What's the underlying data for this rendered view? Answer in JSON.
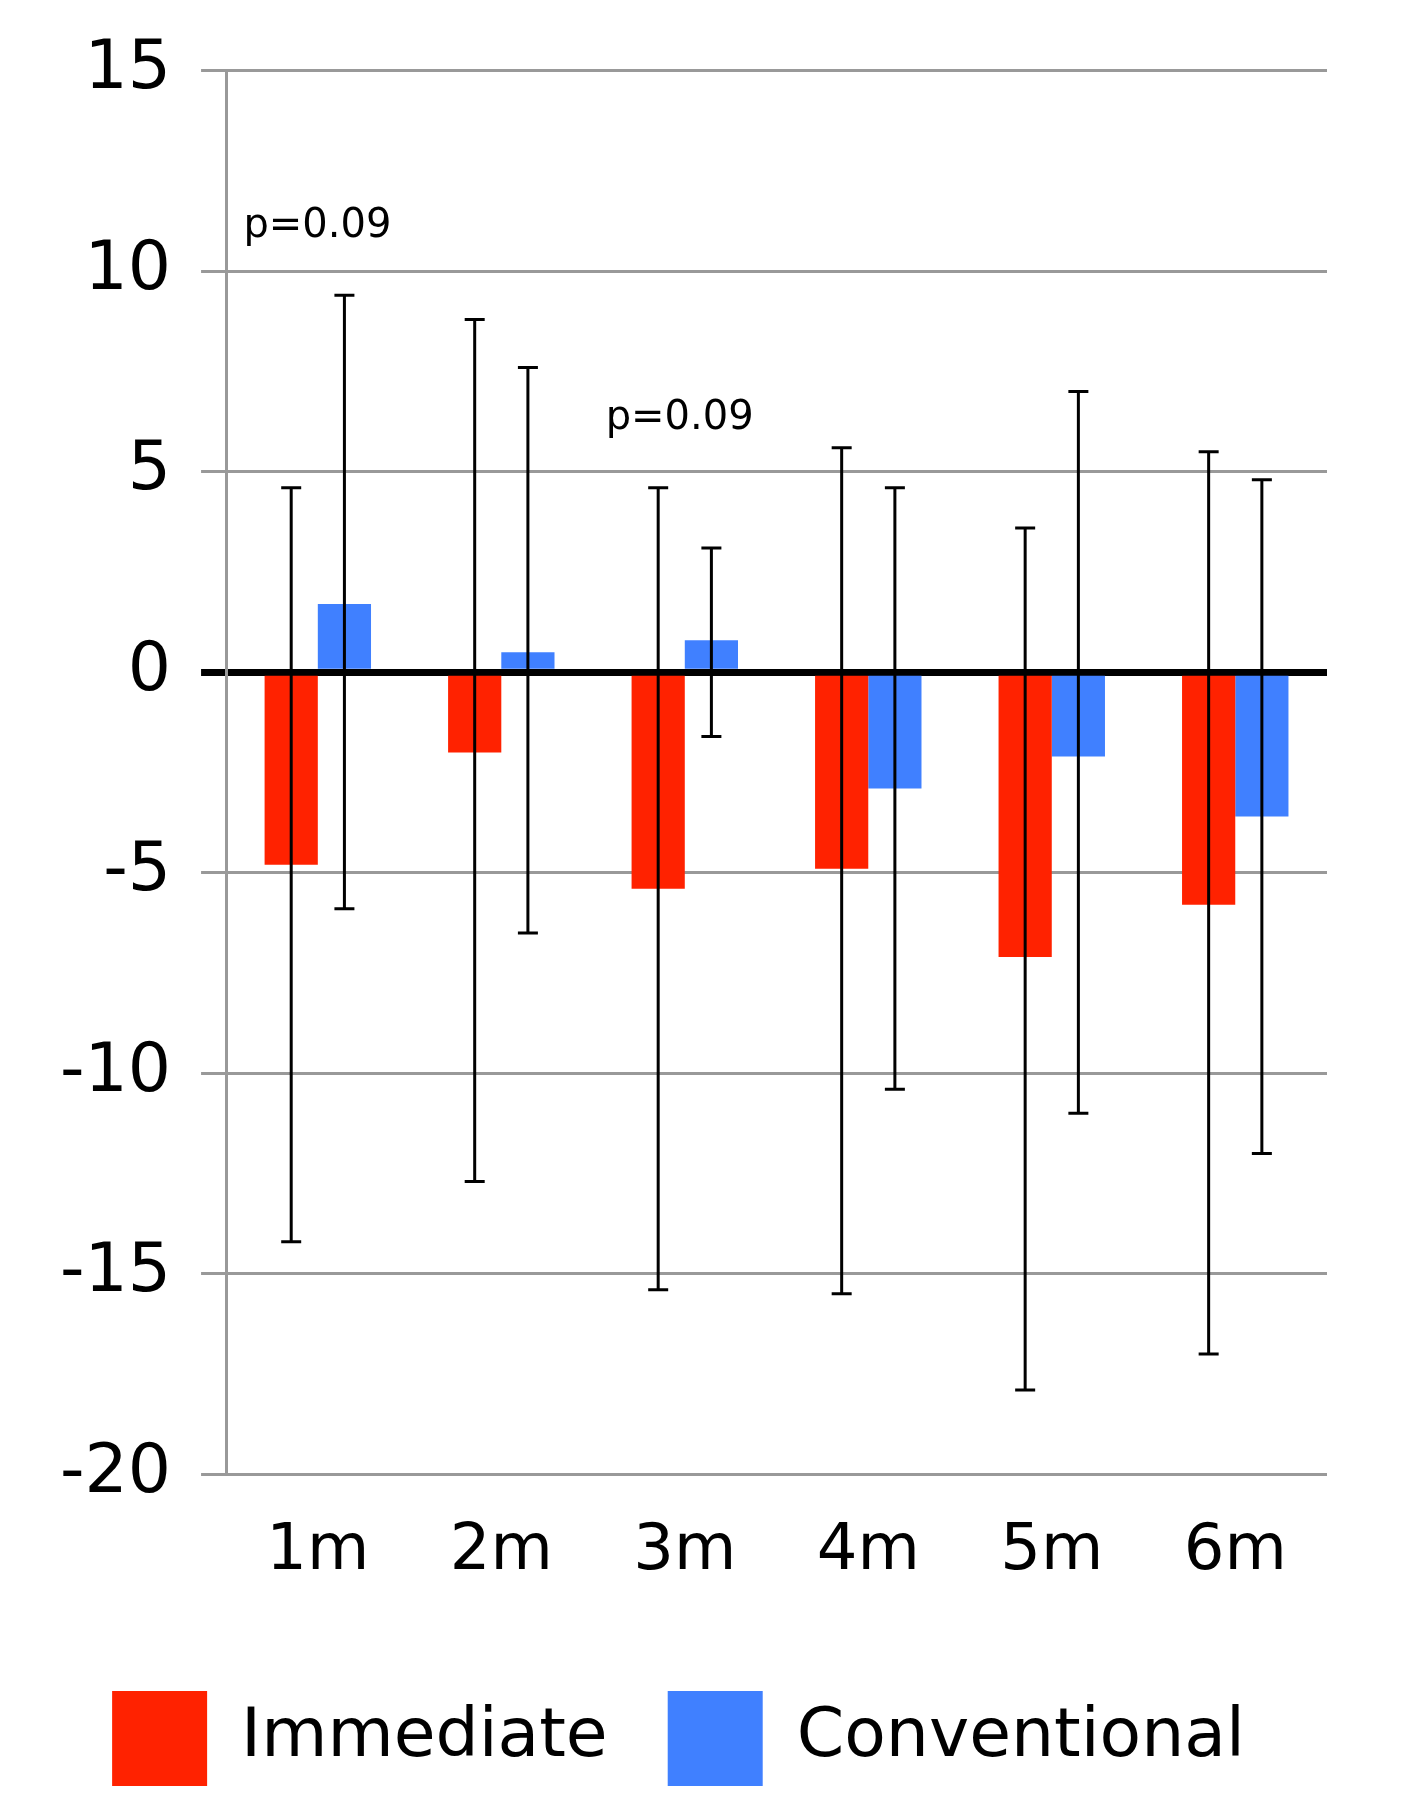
{
  "chart_data": {
    "type": "bar",
    "categories": [
      "1m",
      "2m",
      "3m",
      "4m",
      "5m",
      "6m"
    ],
    "series": [
      {
        "name": "Immediate",
        "color": "#ff2200",
        "values": [
          -4.8,
          -2.0,
          -5.4,
          -4.9,
          -7.1,
          -5.8
        ],
        "errors": [
          [
            -14.2,
            4.6
          ],
          [
            -12.7,
            8.8
          ],
          [
            -15.4,
            4.6
          ],
          [
            -15.5,
            5.6
          ],
          [
            -17.9,
            3.6
          ],
          [
            -17.0,
            5.5
          ]
        ]
      },
      {
        "name": "Conventional",
        "color": "#4080ff",
        "values": [
          1.7,
          0.5,
          0.8,
          -2.9,
          -2.1,
          -3.6
        ],
        "errors": [
          [
            -5.9,
            9.4
          ],
          [
            -6.5,
            7.6
          ],
          [
            -1.6,
            3.1
          ],
          [
            -10.4,
            4.6
          ],
          [
            -11.0,
            7.0
          ],
          [
            -12.0,
            4.8
          ]
        ]
      }
    ],
    "ylim": [
      -20,
      15
    ],
    "yticks": [
      -20,
      -15,
      -10,
      -5,
      0,
      5,
      10,
      15
    ],
    "grid": "y",
    "legend": "bottom",
    "annotations": [
      "p=0.09",
      "p=0.09"
    ]
  }
}
